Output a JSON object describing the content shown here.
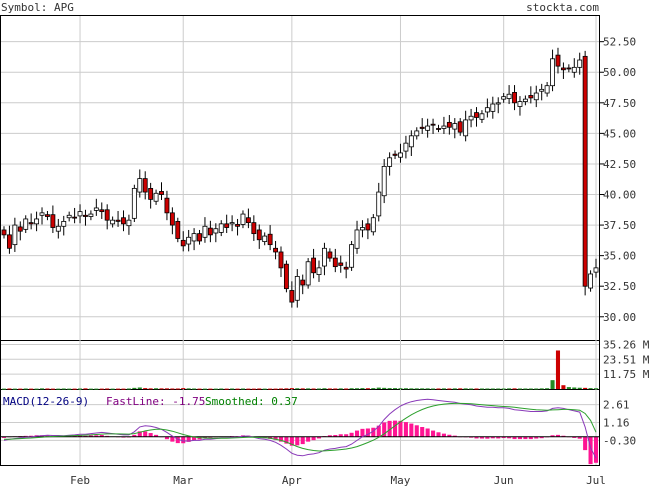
{
  "header": {
    "symbol_label": "Symbol: APG",
    "site_label": "stockta.com"
  },
  "colors": {
    "up_candle": "#ffffff",
    "down_candle": "#cc0000",
    "candle_outline": "#000000",
    "vol_up": "#228b22",
    "vol_down": "#cc0000",
    "fastline": "#8a3ab9",
    "smoothed": "#2ca02c",
    "histogram": "#ff1493",
    "text_blue": "#000080",
    "text_purple": "#800080",
    "text_green": "#008000",
    "grid": "#cccccc"
  },
  "macd_panel": {
    "title": "MACD(12-26-9)",
    "fast_label": "FastLine: -1.75",
    "smooth_label": "Smoothed: 0.37"
  },
  "chart_data": [
    {
      "type": "candlestick",
      "title": "Symbol: APG",
      "y_ticks": [
        "52.50",
        "50.00",
        "47.50",
        "45.00",
        "42.50",
        "40.00",
        "37.50",
        "35.00",
        "32.50",
        "30.00"
      ],
      "ylim": [
        28.1,
        54.6
      ],
      "x_ticks": [
        "Feb",
        "Mar",
        "Apr",
        "May",
        "Jun",
        "Jul"
      ],
      "grid": true,
      "closes": [
        36.7,
        35.6,
        37.5,
        37.0,
        38.0,
        37.6,
        38.0,
        38.5,
        38.2,
        37.3,
        37.4,
        37.8,
        38.3,
        38.1,
        38.6,
        38.2,
        38.4,
        38.9,
        38.6,
        37.9,
        37.9,
        37.8,
        37.6,
        37.9,
        40.5,
        41.3,
        40.2,
        39.6,
        40.1,
        40.0,
        38.5,
        37.5,
        36.4,
        35.8,
        36.5,
        36.8,
        36.2,
        37.4,
        36.7,
        37.2,
        37.6,
        37.3,
        37.7,
        37.4,
        38.4,
        37.7,
        36.8,
        36.3,
        36.6,
        35.9,
        35.3,
        34.0,
        32.3,
        31.2,
        33.3,
        32.6,
        34.5,
        33.6,
        34.0,
        35.6,
        34.8,
        34.1,
        34.2,
        33.9,
        35.9,
        37.1,
        37.3,
        37.1,
        38.1,
        40.2,
        42.3,
        43.0,
        43.2,
        43.4,
        44.2,
        44.8,
        45.2,
        45.4,
        45.6,
        45.7,
        45.4,
        45.6,
        45.5,
        45.8,
        45.1,
        46.1,
        46.4,
        46.3,
        46.6,
        47.1,
        47.4,
        47.5,
        48.0,
        48.2,
        47.5,
        47.6,
        47.8,
        47.9,
        48.3,
        48.6,
        48.9,
        51.1,
        50.5,
        50.2,
        50.3,
        50.4,
        51.0,
        32.5,
        33.5,
        34.0
      ]
    },
    {
      "type": "bar",
      "title": "",
      "y_ticks": [
        "35.26 M",
        "23.51 M",
        "11.75 M"
      ],
      "ylim": [
        0,
        38.0
      ],
      "volumes": [
        0.3,
        0.4,
        0.3,
        0.3,
        0.4,
        0.3,
        0.3,
        0.5,
        0.4,
        0.3,
        0.3,
        0.4,
        0.3,
        0.3,
        0.4,
        0.5,
        0.3,
        0.3,
        0.3,
        0.4,
        0.3,
        0.3,
        0.3,
        0.4,
        0.9,
        1.2,
        0.7,
        0.5,
        0.6,
        0.5,
        0.5,
        0.4,
        0.4,
        0.7,
        0.5,
        0.4,
        0.3,
        0.3,
        0.3,
        0.3,
        0.4,
        0.3,
        0.4,
        0.3,
        0.4,
        0.3,
        0.3,
        0.4,
        0.3,
        0.3,
        0.3,
        0.4,
        0.5,
        0.7,
        0.6,
        0.5,
        0.5,
        0.4,
        0.4,
        0.6,
        0.4,
        0.4,
        0.5,
        0.4,
        0.6,
        0.6,
        0.7,
        0.6,
        0.7,
        1.1,
        0.9,
        0.7,
        0.7,
        0.6,
        0.6,
        0.5,
        0.5,
        0.5,
        0.5,
        0.4,
        0.4,
        0.5,
        0.4,
        0.5,
        0.5,
        0.5,
        0.4,
        0.4,
        0.4,
        0.4,
        0.4,
        0.4,
        0.4,
        0.5,
        0.5,
        0.4,
        0.4,
        0.4,
        0.4,
        0.5,
        0.6,
        7.0,
        30.5,
        3.0,
        1.5,
        1.2,
        1.0,
        0.9,
        0.7,
        0.6
      ]
    },
    {
      "type": "line",
      "title": "MACD(12-26-9)",
      "y_ticks": [
        "2.61",
        "1.16",
        "-0.30"
      ],
      "ylim": [
        -2.3,
        3.8
      ],
      "series": [
        {
          "name": "FastLine",
          "values": [
            -0.3,
            -0.2,
            -0.15,
            -0.1,
            -0.05,
            -0.02,
            0.05,
            0.08,
            0.12,
            0.1,
            0.1,
            0.08,
            0.12,
            0.15,
            0.2,
            0.2,
            0.25,
            0.3,
            0.35,
            0.3,
            0.25,
            0.2,
            0.15,
            0.15,
            0.4,
            0.8,
            0.9,
            0.85,
            0.75,
            0.6,
            0.35,
            0.05,
            -0.2,
            -0.35,
            -0.35,
            -0.3,
            -0.3,
            -0.2,
            -0.2,
            -0.15,
            -0.1,
            -0.1,
            -0.05,
            -0.05,
            0.05,
            0.05,
            -0.05,
            -0.15,
            -0.2,
            -0.3,
            -0.45,
            -0.7,
            -1.0,
            -1.35,
            -1.5,
            -1.55,
            -1.45,
            -1.4,
            -1.3,
            -1.1,
            -1.0,
            -0.95,
            -0.85,
            -0.8,
            -0.6,
            -0.3,
            0.0,
            0.2,
            0.45,
            0.85,
            1.4,
            1.85,
            2.2,
            2.5,
            2.7,
            2.85,
            2.95,
            3.0,
            3.05,
            3.0,
            2.95,
            2.9,
            2.85,
            2.8,
            2.7,
            2.65,
            2.6,
            2.5,
            2.45,
            2.4,
            2.4,
            2.35,
            2.35,
            2.3,
            2.2,
            2.15,
            2.1,
            2.05,
            2.05,
            2.05,
            2.1,
            2.3,
            2.35,
            2.3,
            2.2,
            2.1,
            2.0,
            0.8,
            -0.9,
            -1.75
          ]
        },
        {
          "name": "Smoothed",
          "values": [
            -0.2,
            -0.2,
            -0.18,
            -0.15,
            -0.12,
            -0.1,
            -0.07,
            -0.04,
            0.0,
            0.02,
            0.04,
            0.05,
            0.07,
            0.09,
            0.11,
            0.13,
            0.15,
            0.18,
            0.21,
            0.23,
            0.23,
            0.23,
            0.22,
            0.21,
            0.25,
            0.36,
            0.47,
            0.55,
            0.6,
            0.6,
            0.55,
            0.45,
            0.32,
            0.18,
            0.07,
            -0.02,
            -0.08,
            -0.1,
            -0.12,
            -0.13,
            -0.12,
            -0.12,
            -0.1,
            -0.09,
            -0.06,
            -0.04,
            -0.04,
            -0.06,
            -0.09,
            -0.13,
            -0.2,
            -0.3,
            -0.44,
            -0.62,
            -0.8,
            -0.95,
            -1.05,
            -1.12,
            -1.16,
            -1.15,
            -1.12,
            -1.09,
            -1.05,
            -1.0,
            -0.92,
            -0.8,
            -0.64,
            -0.47,
            -0.28,
            -0.05,
            0.24,
            0.56,
            0.89,
            1.21,
            1.51,
            1.78,
            2.02,
            2.21,
            2.38,
            2.5,
            2.59,
            2.65,
            2.69,
            2.71,
            2.71,
            2.7,
            2.68,
            2.64,
            2.6,
            2.56,
            2.53,
            2.49,
            2.46,
            2.43,
            2.39,
            2.34,
            2.29,
            2.24,
            2.2,
            2.17,
            2.15,
            2.18,
            2.2,
            2.22,
            2.22,
            2.2,
            2.16,
            1.89,
            1.33,
            0.37
          ]
        }
      ]
    }
  ]
}
